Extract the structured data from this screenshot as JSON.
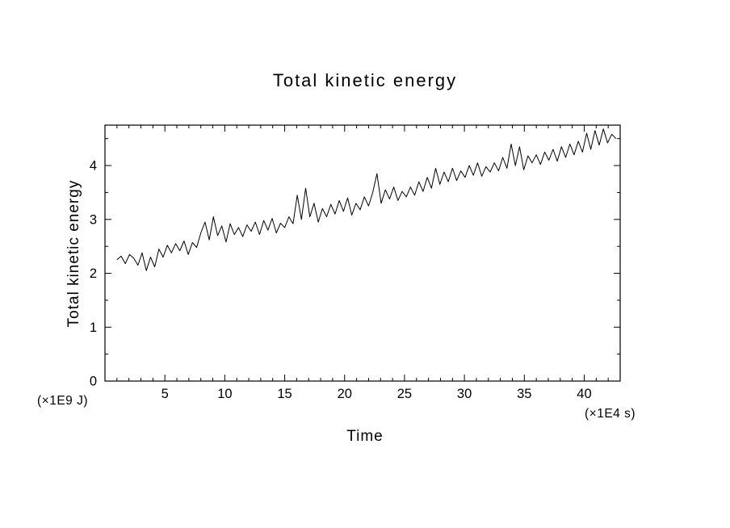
{
  "title": "Total kinetic energy",
  "axes": {
    "xlabel": "Time",
    "ylabel": "Total kinetic energy",
    "x_unit_label": "(×1E4 s)",
    "y_unit_label": "(×1E9 J)"
  },
  "colors": {
    "line": "#000000",
    "axis": "#000000",
    "background": "#ffffff"
  },
  "chart_data": {
    "type": "line",
    "title": "Total kinetic energy",
    "xlabel": "Time (×1E4 s)",
    "ylabel": "Total kinetic energy (×1E9 J)",
    "xlim": [
      0,
      43
    ],
    "ylim": [
      0,
      4.75
    ],
    "x_ticks": [
      5,
      10,
      15,
      20,
      25,
      30,
      35,
      40
    ],
    "y_ticks": [
      0,
      1,
      2,
      3,
      4
    ],
    "x_minor_step": 1,
    "y_minor_step": 0.5,
    "grid": false,
    "legend": "none",
    "x_start": 1.0,
    "x_step": 0.35,
    "values": [
      2.25,
      2.32,
      2.18,
      2.35,
      2.28,
      2.15,
      2.38,
      2.05,
      2.3,
      2.12,
      2.45,
      2.3,
      2.52,
      2.38,
      2.55,
      2.42,
      2.6,
      2.35,
      2.57,
      2.48,
      2.75,
      2.95,
      2.62,
      3.05,
      2.7,
      2.88,
      2.58,
      2.92,
      2.72,
      2.85,
      2.68,
      2.9,
      2.78,
      2.95,
      2.72,
      2.98,
      2.8,
      3.02,
      2.75,
      2.93,
      2.85,
      3.05,
      2.92,
      3.45,
      3.0,
      3.58,
      3.05,
      3.3,
      2.95,
      3.2,
      3.05,
      3.28,
      3.1,
      3.35,
      3.15,
      3.4,
      3.08,
      3.3,
      3.18,
      3.42,
      3.25,
      3.5,
      3.85,
      3.3,
      3.55,
      3.38,
      3.6,
      3.35,
      3.52,
      3.42,
      3.6,
      3.45,
      3.7,
      3.52,
      3.78,
      3.58,
      3.95,
      3.65,
      3.88,
      3.7,
      3.95,
      3.72,
      3.9,
      3.78,
      4.0,
      3.82,
      4.05,
      3.8,
      3.98,
      3.88,
      4.05,
      3.9,
      4.15,
      3.95,
      4.4,
      4.0,
      4.35,
      3.92,
      4.18,
      4.05,
      4.2,
      4.02,
      4.25,
      4.1,
      4.3,
      4.08,
      4.35,
      4.15,
      4.4,
      4.2,
      4.45,
      4.25,
      4.6,
      4.3,
      4.65,
      4.38,
      4.68,
      4.42,
      4.58,
      4.5
    ]
  }
}
